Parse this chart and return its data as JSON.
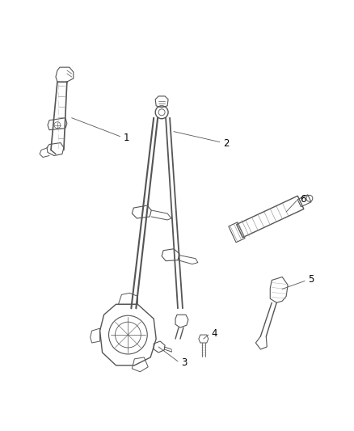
{
  "background_color": "#ffffff",
  "line_color": "#555555",
  "label_color": "#000000",
  "fig_width": 4.38,
  "fig_height": 5.33,
  "dpi": 100
}
